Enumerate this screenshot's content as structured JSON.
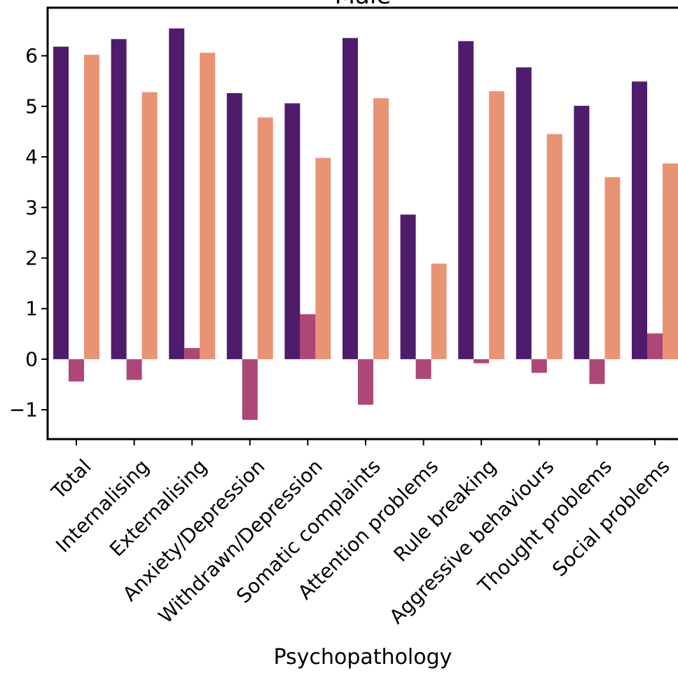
{
  "chart_data": {
    "type": "bar",
    "title": "Male",
    "xlabel": "Psychopathology",
    "ylabel": "",
    "ylim": [
      -1.58,
      6.95
    ],
    "yticks": [
      -1,
      0,
      1,
      2,
      3,
      4,
      5,
      6
    ],
    "ytick_labels": [
      "−1",
      "0",
      "1",
      "2",
      "3",
      "4",
      "5",
      "6"
    ],
    "grid": false,
    "categories": [
      "Total",
      "Internalising",
      "Externalising",
      "Anxiety/Depression",
      "Withdrawn/Depression",
      "Somatic complaints",
      "Attention problems",
      "Rule breaking",
      "Aggressive behaviours",
      "Thought problems",
      "Social problems"
    ],
    "series": [
      {
        "color": "#4f1c6b",
        "values": [
          6.18,
          6.33,
          6.54,
          5.26,
          5.06,
          6.35,
          2.86,
          6.29,
          5.77,
          5.01,
          5.49
        ]
      },
      {
        "color": "#ae4677",
        "values": [
          -0.44,
          -0.41,
          0.22,
          -1.2,
          0.89,
          -0.9,
          -0.39,
          -0.08,
          -0.27,
          -0.49,
          0.51
        ]
      },
      {
        "color": "#e99375",
        "values": [
          6.02,
          5.28,
          6.06,
          4.78,
          3.98,
          5.16,
          1.89,
          5.3,
          4.45,
          3.6,
          3.87
        ]
      }
    ]
  }
}
